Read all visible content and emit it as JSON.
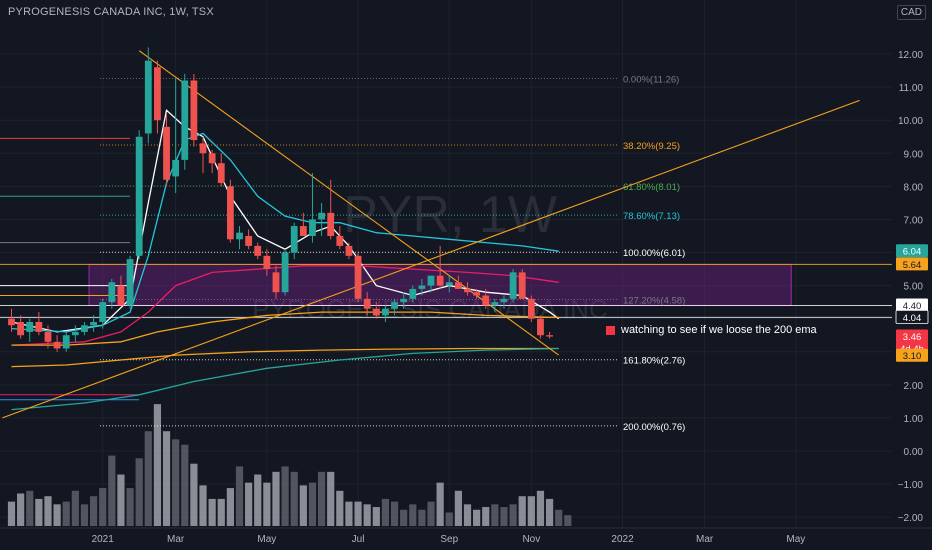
{
  "header": {
    "title": "PYROGENESIS CANADA INC, 1W, TSX",
    "currency": "CAD"
  },
  "watermark": {
    "symbol": "PYR, 1W",
    "name": "PYROGENESIS CANADA INC"
  },
  "annotation": {
    "text": "watching to see if we loose the 200 ema",
    "color": "#f23645"
  },
  "fib_levels": [
    {
      "label": "0.00%(11.26)",
      "price": 11.26,
      "color": "#787b86"
    },
    {
      "label": "38.20%(9.25)",
      "price": 9.25,
      "color": "#f7a21b"
    },
    {
      "label": "61.80%(8.01)",
      "price": 8.01,
      "color": "#4caf50"
    },
    {
      "label": "78.60%(7.13)",
      "price": 7.13,
      "color": "#26c6da"
    },
    {
      "label": "100.00%(6.01)",
      "price": 6.01,
      "color": "#ffffff"
    },
    {
      "label": "127.20%(4.58)",
      "price": 4.58,
      "color": "#787b86"
    },
    {
      "label": "161.80%(2.76)",
      "price": 2.76,
      "color": "#ffffff"
    },
    {
      "label": "200.00%(0.76)",
      "price": 0.76,
      "color": "#ffffff"
    }
  ],
  "price_tags": [
    {
      "label": "6.04",
      "price": 6.04,
      "bg": "#26a69a",
      "fg": "#ffffff"
    },
    {
      "label": "5.64",
      "price": 5.64,
      "bg": "#f7a21b",
      "fg": "#131722"
    },
    {
      "label": "4.40",
      "price": 4.4,
      "bg": "#ffffff",
      "fg": "#131722"
    },
    {
      "label": "4.04",
      "price": 4.04,
      "bg": "#131722",
      "fg": "#ffffff"
    },
    {
      "label": "3.46",
      "price": 3.46,
      "bg": "#f23645",
      "fg": "#ffffff"
    },
    {
      "label": "4d 4h",
      "price": 3.1,
      "bg": "#f23645",
      "fg": "#ffffff"
    },
    {
      "label": "3.10",
      "price": 2.88,
      "bg": "#f7a21b",
      "fg": "#131722"
    }
  ],
  "chart_data": {
    "type": "candlestick",
    "title": "PYROGENESIS CANADA INC, 1W, TSX",
    "ylim": [
      -2.2,
      12.3
    ],
    "y_ticks": [
      "12.00",
      "11.00",
      "10.00",
      "9.00",
      "8.00",
      "7.00",
      "6.00",
      "5.00",
      "4.00",
      "3.00",
      "2.00",
      "1.00",
      "0.00",
      "−1.00",
      "−2.00"
    ],
    "y_tick_values": [
      12,
      11,
      10,
      9,
      8,
      7,
      6,
      5,
      4,
      3,
      2,
      1,
      0,
      -1,
      -2
    ],
    "x_ticks": [
      {
        "label": "2021",
        "bar": 10
      },
      {
        "label": "Mar",
        "bar": 18
      },
      {
        "label": "May",
        "bar": 28
      },
      {
        "label": "Jul",
        "bar": 38
      },
      {
        "label": "Sep",
        "bar": 48
      },
      {
        "label": "Nov",
        "bar": 57
      },
      {
        "label": "2022",
        "bar": 67
      },
      {
        "label": "Mar",
        "bar": 76
      },
      {
        "label": "May",
        "bar": 86
      }
    ],
    "candles": [
      {
        "o": 4.0,
        "h": 4.3,
        "l": 3.6,
        "c": 3.8
      },
      {
        "o": 3.9,
        "h": 4.1,
        "l": 3.4,
        "c": 3.5
      },
      {
        "o": 3.6,
        "h": 4.0,
        "l": 3.3,
        "c": 3.9
      },
      {
        "o": 3.9,
        "h": 4.2,
        "l": 3.5,
        "c": 3.6
      },
      {
        "o": 3.6,
        "h": 3.8,
        "l": 3.1,
        "c": 3.3
      },
      {
        "o": 3.3,
        "h": 3.5,
        "l": 3.0,
        "c": 3.1
      },
      {
        "o": 3.1,
        "h": 3.6,
        "l": 3.0,
        "c": 3.5
      },
      {
        "o": 3.5,
        "h": 3.8,
        "l": 3.3,
        "c": 3.6
      },
      {
        "o": 3.6,
        "h": 3.9,
        "l": 3.5,
        "c": 3.8
      },
      {
        "o": 3.8,
        "h": 4.1,
        "l": 3.6,
        "c": 3.9
      },
      {
        "o": 3.9,
        "h": 4.6,
        "l": 3.7,
        "c": 4.5
      },
      {
        "o": 4.5,
        "h": 5.2,
        "l": 4.3,
        "c": 5.1
      },
      {
        "o": 5.0,
        "h": 5.3,
        "l": 4.4,
        "c": 4.4
      },
      {
        "o": 4.4,
        "h": 5.9,
        "l": 4.3,
        "c": 5.8
      },
      {
        "o": 5.9,
        "h": 9.7,
        "l": 5.8,
        "c": 9.5
      },
      {
        "o": 9.6,
        "h": 12.2,
        "l": 9.3,
        "c": 11.8
      },
      {
        "o": 11.6,
        "h": 11.8,
        "l": 9.6,
        "c": 10.0
      },
      {
        "o": 9.8,
        "h": 10.2,
        "l": 8.0,
        "c": 8.2
      },
      {
        "o": 8.3,
        "h": 11.3,
        "l": 7.8,
        "c": 8.8
      },
      {
        "o": 8.8,
        "h": 11.4,
        "l": 8.5,
        "c": 11.2
      },
      {
        "o": 11.2,
        "h": 11.4,
        "l": 9.2,
        "c": 9.4
      },
      {
        "o": 9.3,
        "h": 9.5,
        "l": 8.4,
        "c": 9.0
      },
      {
        "o": 9.0,
        "h": 9.1,
        "l": 8.4,
        "c": 8.7
      },
      {
        "o": 8.7,
        "h": 9.0,
        "l": 8.0,
        "c": 8.1
      },
      {
        "o": 8.0,
        "h": 8.2,
        "l": 6.3,
        "c": 6.4
      },
      {
        "o": 6.4,
        "h": 6.8,
        "l": 6.1,
        "c": 6.6
      },
      {
        "o": 6.5,
        "h": 6.7,
        "l": 6.1,
        "c": 6.2
      },
      {
        "o": 6.2,
        "h": 6.3,
        "l": 5.8,
        "c": 5.9
      },
      {
        "o": 5.9,
        "h": 6.1,
        "l": 5.3,
        "c": 5.5
      },
      {
        "o": 5.4,
        "h": 5.6,
        "l": 4.6,
        "c": 4.8
      },
      {
        "o": 4.8,
        "h": 6.1,
        "l": 4.7,
        "c": 6.0
      },
      {
        "o": 6.0,
        "h": 6.9,
        "l": 5.8,
        "c": 6.8
      },
      {
        "o": 6.8,
        "h": 7.2,
        "l": 6.5,
        "c": 6.5
      },
      {
        "o": 6.5,
        "h": 8.4,
        "l": 6.3,
        "c": 7.0
      },
      {
        "o": 7.0,
        "h": 7.5,
        "l": 6.5,
        "c": 7.2
      },
      {
        "o": 7.2,
        "h": 8.2,
        "l": 6.4,
        "c": 6.5
      },
      {
        "o": 6.5,
        "h": 6.8,
        "l": 6.1,
        "c": 6.2
      },
      {
        "o": 6.2,
        "h": 6.3,
        "l": 5.8,
        "c": 5.9
      },
      {
        "o": 5.9,
        "h": 6.0,
        "l": 4.5,
        "c": 4.6
      },
      {
        "o": 4.6,
        "h": 4.8,
        "l": 4.1,
        "c": 4.3
      },
      {
        "o": 4.3,
        "h": 4.5,
        "l": 4.0,
        "c": 4.1
      },
      {
        "o": 4.1,
        "h": 4.4,
        "l": 3.9,
        "c": 4.3
      },
      {
        "o": 4.3,
        "h": 4.6,
        "l": 4.1,
        "c": 4.5
      },
      {
        "o": 4.5,
        "h": 4.8,
        "l": 4.3,
        "c": 4.6
      },
      {
        "o": 4.6,
        "h": 5.0,
        "l": 4.5,
        "c": 4.9
      },
      {
        "o": 4.9,
        "h": 5.2,
        "l": 4.7,
        "c": 5.0
      },
      {
        "o": 5.0,
        "h": 5.3,
        "l": 4.8,
        "c": 5.3
      },
      {
        "o": 5.3,
        "h": 6.2,
        "l": 4.9,
        "c": 5.0
      },
      {
        "o": 5.0,
        "h": 5.3,
        "l": 4.8,
        "c": 5.1
      },
      {
        "o": 5.1,
        "h": 5.3,
        "l": 4.9,
        "c": 4.9
      },
      {
        "o": 4.9,
        "h": 5.1,
        "l": 4.7,
        "c": 4.8
      },
      {
        "o": 4.8,
        "h": 4.9,
        "l": 4.6,
        "c": 4.7
      },
      {
        "o": 4.7,
        "h": 4.9,
        "l": 4.3,
        "c": 4.4
      },
      {
        "o": 4.4,
        "h": 4.6,
        "l": 4.2,
        "c": 4.5
      },
      {
        "o": 4.5,
        "h": 4.7,
        "l": 4.3,
        "c": 4.6
      },
      {
        "o": 4.6,
        "h": 5.5,
        "l": 4.5,
        "c": 5.4
      },
      {
        "o": 5.4,
        "h": 5.5,
        "l": 4.6,
        "c": 4.6
      },
      {
        "o": 4.6,
        "h": 4.7,
        "l": 3.9,
        "c": 4.0
      },
      {
        "o": 4.0,
        "h": 4.1,
        "l": 3.4,
        "c": 3.5
      },
      {
        "o": 3.5,
        "h": 3.6,
        "l": 3.4,
        "c": 3.46
      }
    ],
    "volume": [
      0.9,
      1.2,
      1.3,
      1.0,
      1.1,
      0.8,
      0.9,
      1.3,
      0.8,
      1.1,
      1.4,
      2.6,
      1.9,
      1.4,
      2.5,
      3.5,
      4.5,
      3.5,
      3.2,
      3.0,
      2.3,
      1.5,
      1.0,
      1.0,
      1.4,
      2.2,
      1.6,
      1.9,
      1.6,
      2.0,
      2.2,
      2.0,
      1.5,
      1.6,
      2.0,
      2.0,
      1.3,
      0.9,
      0.9,
      0.8,
      0.7,
      1.0,
      0.9,
      0.6,
      0.8,
      0.6,
      0.9,
      1.6,
      0.5,
      1.3,
      0.8,
      0.6,
      0.7,
      0.8,
      0.7,
      0.8,
      1.1,
      1.1,
      1.3,
      1.0,
      0.6,
      0.4
    ],
    "vol_scale_max": 4.8,
    "series": [
      {
        "name": "",
        "color": "#ffffff",
        "points": [
          [
            0,
            3.9
          ],
          [
            5,
            3.6
          ],
          [
            10,
            3.8
          ],
          [
            13,
            4.6
          ],
          [
            15,
            7.5
          ],
          [
            17,
            10.3
          ],
          [
            19,
            9.8
          ],
          [
            21,
            9.5
          ],
          [
            24,
            7.7
          ],
          [
            27,
            6.5
          ],
          [
            30,
            6.1
          ],
          [
            33,
            6.6
          ],
          [
            35,
            6.8
          ],
          [
            37,
            6.2
          ],
          [
            40,
            5.0
          ],
          [
            44,
            4.7
          ],
          [
            48,
            5.0
          ],
          [
            52,
            4.8
          ],
          [
            56,
            4.7
          ],
          [
            59,
            4.2
          ],
          [
            60,
            4.0
          ]
        ]
      },
      {
        "name": "",
        "color": "#26c6da",
        "points": [
          [
            0,
            3.7
          ],
          [
            6,
            3.6
          ],
          [
            10,
            3.8
          ],
          [
            13,
            4.2
          ],
          [
            15,
            5.9
          ],
          [
            17,
            8.1
          ],
          [
            19,
            9.4
          ],
          [
            21,
            9.6
          ],
          [
            24,
            8.8
          ],
          [
            27,
            7.7
          ],
          [
            30,
            7.1
          ],
          [
            33,
            6.9
          ],
          [
            36,
            6.9
          ],
          [
            40,
            6.6
          ],
          [
            44,
            6.5
          ],
          [
            48,
            6.4
          ],
          [
            52,
            6.3
          ],
          [
            56,
            6.2
          ],
          [
            60,
            6.04
          ]
        ]
      },
      {
        "name": "",
        "color": "#e91e63",
        "points": [
          [
            0,
            3.2
          ],
          [
            8,
            3.3
          ],
          [
            12,
            3.6
          ],
          [
            15,
            4.2
          ],
          [
            18,
            5.0
          ],
          [
            22,
            5.4
          ],
          [
            27,
            5.5
          ],
          [
            32,
            5.6
          ],
          [
            38,
            5.6
          ],
          [
            44,
            5.5
          ],
          [
            50,
            5.4
          ],
          [
            55,
            5.3
          ],
          [
            60,
            5.1
          ]
        ]
      },
      {
        "name": "",
        "color": "#f7a21b",
        "points": [
          [
            0,
            3.2
          ],
          [
            6,
            3.2
          ],
          [
            12,
            3.3
          ],
          [
            16,
            3.6
          ],
          [
            22,
            3.9
          ],
          [
            28,
            4.1
          ],
          [
            34,
            4.2
          ],
          [
            40,
            4.2
          ],
          [
            46,
            4.2
          ],
          [
            52,
            4.1
          ],
          [
            58,
            4.05
          ],
          [
            60,
            4.04
          ]
        ]
      },
      {
        "name": "",
        "color": "#f7a21b",
        "points": [
          [
            0,
            2.55
          ],
          [
            6,
            2.6
          ],
          [
            12,
            2.75
          ],
          [
            18,
            2.9
          ],
          [
            26,
            3.0
          ],
          [
            34,
            3.05
          ],
          [
            42,
            3.08
          ],
          [
            50,
            3.1
          ],
          [
            60,
            3.1
          ]
        ]
      },
      {
        "name": "",
        "color": "#26a69a",
        "points": [
          [
            0,
            1.25
          ],
          [
            8,
            1.45
          ],
          [
            14,
            1.7
          ],
          [
            20,
            2.1
          ],
          [
            28,
            2.5
          ],
          [
            36,
            2.75
          ],
          [
            44,
            2.95
          ],
          [
            52,
            3.05
          ],
          [
            60,
            3.1
          ]
        ]
      }
    ],
    "trendlines": [
      {
        "color": "#f7a21b",
        "from": [
          14,
          12.1
        ],
        "to": [
          60,
          2.9
        ]
      },
      {
        "color": "#f7a21b",
        "from": [
          -1,
          1.0
        ],
        "to": [
          93,
          10.6
        ]
      }
    ],
    "zone": {
      "bar_from": 8.5,
      "bar_to": 85.5,
      "top": 5.64,
      "bottom": 4.4,
      "fill": "rgba(156,39,176,0.30)",
      "stroke": "#9c27b0"
    },
    "short_lines": [
      {
        "price": 9.45,
        "color": "#f23645",
        "bar_to": 13
      },
      {
        "price": 7.7,
        "color": "#26a69a",
        "bar_to": 13
      },
      {
        "price": 6.3,
        "color": "#787b86",
        "bar_to": 13
      },
      {
        "price": 5.0,
        "color": "#ffffff",
        "bar_to": 13
      },
      {
        "price": 4.7,
        "color": "#f7a21b",
        "bar_to": 13
      },
      {
        "price": 1.7,
        "color": "#e91e63",
        "bar_to": 14
      },
      {
        "price": 1.55,
        "color": "#2196f3",
        "bar_to": 14
      }
    ]
  }
}
